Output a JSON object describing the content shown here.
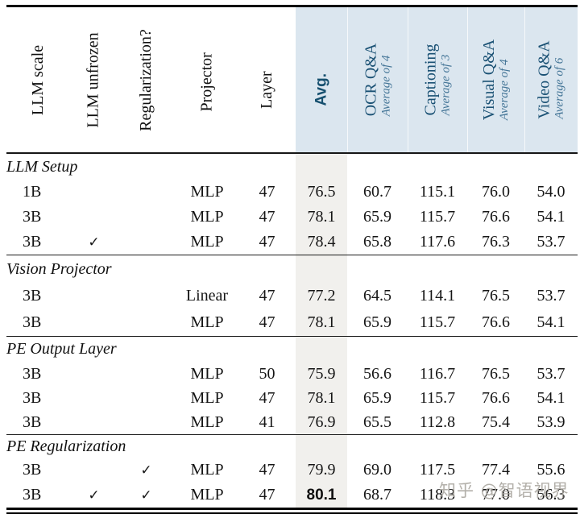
{
  "colors": {
    "header_bg": "#dbe6ef",
    "header_text": "#1a5174",
    "subtitle_text": "#447597",
    "avg_column_bg": "#f1f0ed",
    "body_text": "#151515"
  },
  "watermark": "知乎 @智语视界",
  "table": {
    "columns": [
      {
        "label": "LLM scale",
        "sub": ""
      },
      {
        "label": "LLM unfrozen",
        "sub": ""
      },
      {
        "label": "Regularization?",
        "sub": ""
      },
      {
        "label": "Projector",
        "sub": ""
      },
      {
        "label": "Layer",
        "sub": ""
      },
      {
        "label": "Avg.",
        "sub": ""
      },
      {
        "label": "OCR Q&A",
        "sub": "Average of 4"
      },
      {
        "label": "Captioning",
        "sub": "Average of 3"
      },
      {
        "label": "Visual Q&A",
        "sub": "Average of 4"
      },
      {
        "label": "Video Q&A",
        "sub": "Average of 6"
      }
    ],
    "sections": [
      {
        "title": "LLM Setup",
        "rows": [
          {
            "cells": [
              "1B",
              "",
              "",
              "MLP",
              "47",
              "76.5",
              "60.7",
              "115.1",
              "76.0",
              "54.0"
            ]
          },
          {
            "cells": [
              "3B",
              "",
              "",
              "MLP",
              "47",
              "78.1",
              "65.9",
              "115.7",
              "76.6",
              "54.1"
            ]
          },
          {
            "cells": [
              "3B",
              "✓",
              "",
              "MLP",
              "47",
              "78.4",
              "65.8",
              "117.6",
              "76.3",
              "53.7"
            ]
          }
        ]
      },
      {
        "title": "Vision Projector",
        "rows": [
          {
            "cells": [
              "3B",
              "",
              "",
              "Linear",
              "47",
              "77.2",
              "64.5",
              "114.1",
              "76.5",
              "53.7"
            ]
          },
          {
            "cells": [
              "3B",
              "",
              "",
              "MLP",
              "47",
              "78.1",
              "65.9",
              "115.7",
              "76.6",
              "54.1"
            ]
          }
        ]
      },
      {
        "title": "PE Output Layer",
        "rows": [
          {
            "cells": [
              "3B",
              "",
              "",
              "MLP",
              "50",
              "75.9",
              "56.6",
              "116.7",
              "76.5",
              "53.7"
            ]
          },
          {
            "cells": [
              "3B",
              "",
              "",
              "MLP",
              "47",
              "78.1",
              "65.9",
              "115.7",
              "76.6",
              "54.1"
            ]
          },
          {
            "cells": [
              "3B",
              "",
              "",
              "MLP",
              "41",
              "76.9",
              "65.5",
              "112.8",
              "75.4",
              "53.9"
            ]
          }
        ]
      },
      {
        "title": "PE Regularization",
        "rows": [
          {
            "cells": [
              "3B",
              "",
              "✓",
              "MLP",
              "47",
              "79.9",
              "69.0",
              "117.5",
              "77.4",
              "55.6"
            ]
          },
          {
            "cells": [
              "3B",
              "✓",
              "✓",
              "MLP",
              "47",
              "80.1",
              "68.7",
              "118.3",
              "77.0",
              "56.3"
            ]
          }
        ]
      }
    ]
  }
}
